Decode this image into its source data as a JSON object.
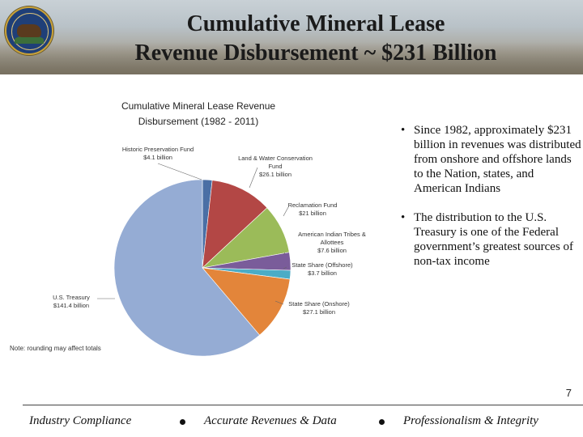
{
  "slide": {
    "title_line1": "Cumulative Mineral Lease",
    "title_line2": "Revenue Disbursement ~ $231 Billion",
    "page_number": "7",
    "bullets": [
      "Since 1982, approximately $231 billion in revenues was distributed from onshore and offshore lands to the Nation, states, and American Indians",
      "The distribution to the U.S. Treasury is one of the Federal government’s greatest sources of non-tax income"
    ],
    "footer": [
      "Industry Compliance",
      "Accurate Revenues & Data",
      "Professionalism & Integrity"
    ]
  },
  "chart_data": {
    "type": "pie",
    "title_line1": "Cumulative Mineral Lease Revenue",
    "title_line2": "Disbursement (1982 - 2011)",
    "note": "Note: rounding may affect totals",
    "slices": [
      {
        "name": "Historic Preservation Fund",
        "value": 4.1,
        "value_label": "$4.1 billion",
        "color": "#4a6fa5"
      },
      {
        "name": "Land & Water Conservation Fund",
        "value": 26.1,
        "value_label": "$26.1 billion",
        "color": "#b34745"
      },
      {
        "name": "Reclamation Fund",
        "value": 21.0,
        "value_label": "$21 billion",
        "color": "#9bbb59"
      },
      {
        "name": "American Indian Tribes & Allottees",
        "value": 7.6,
        "value_label": "$7.6 billion",
        "color": "#7a5c9a"
      },
      {
        "name": "State Share (Offshore)",
        "value": 3.7,
        "value_label": "$3.7 billion",
        "color": "#4bacc6"
      },
      {
        "name": "State Share (Onshore)",
        "value": 27.1,
        "value_label": "$27.1 billion",
        "color": "#e3853a"
      },
      {
        "name": "U.S. Treasury",
        "value": 141.4,
        "value_label": "$141.4 billion",
        "color": "#95acd4"
      }
    ]
  }
}
